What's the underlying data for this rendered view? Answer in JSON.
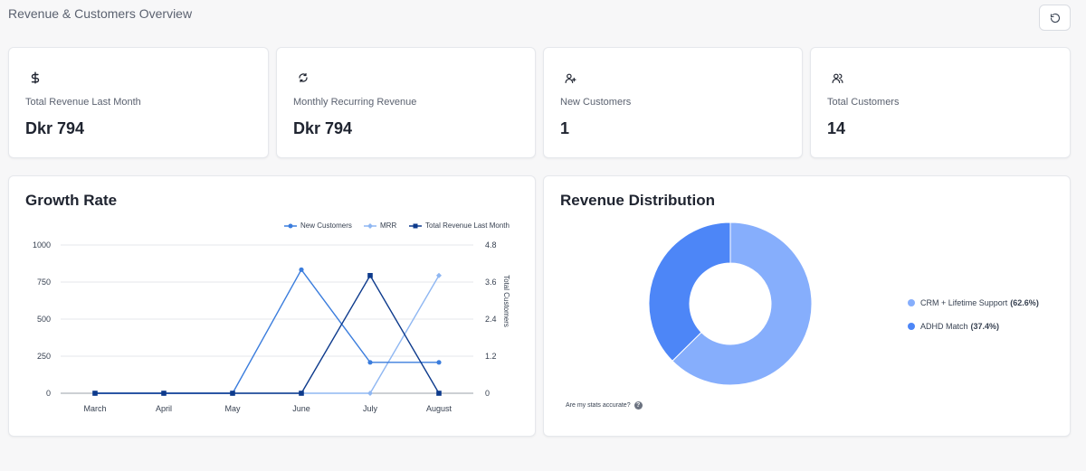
{
  "page": {
    "title": "Revenue & Customers Overview"
  },
  "stats": [
    {
      "icon": "dollar-icon",
      "label": "Total Revenue Last Month",
      "value": "Dkr 794"
    },
    {
      "icon": "recurring-icon",
      "label": "Monthly Recurring Revenue",
      "value": "Dkr 794"
    },
    {
      "icon": "user-plus-icon",
      "label": "New Customers",
      "value": "1"
    },
    {
      "icon": "users-icon",
      "label": "Total Customers",
      "value": "14"
    }
  ],
  "growth": {
    "title": "Growth Rate",
    "legend": [
      "New Customers",
      "MRR",
      "Total Revenue Last Month"
    ]
  },
  "distribution": {
    "title": "Revenue Distribution",
    "accuracy_text": "Are my stats accurate?",
    "items": [
      {
        "label": "CRM + Lifetime Support",
        "pct": "(62.6%)"
      },
      {
        "label": "ADHD Match",
        "pct": "(37.4%)"
      }
    ]
  },
  "colors": {
    "new_customers": "#3b7ddd",
    "mrr": "#8fb7f2",
    "total_revenue": "#0d3a8c",
    "donut_primary": "#86aefc",
    "donut_secondary": "#4d86f7"
  },
  "chart_data": [
    {
      "type": "line",
      "title": "Growth Rate",
      "categories": [
        "March",
        "April",
        "May",
        "June",
        "July",
        "August"
      ],
      "y_left": {
        "ticks": [
          0,
          250,
          500,
          750,
          1000
        ],
        "ylim": [
          0,
          1000
        ]
      },
      "y_right": {
        "label": "Total Customers",
        "ticks": [
          0,
          1.2,
          2.4,
          3.6,
          4.8
        ],
        "ylim": [
          0,
          4.8
        ]
      },
      "series": [
        {
          "name": "New Customers",
          "axis": "right",
          "values": [
            0,
            0,
            0,
            4,
            1,
            1
          ]
        },
        {
          "name": "MRR",
          "axis": "left",
          "values": [
            0,
            0,
            0,
            0,
            0,
            794
          ]
        },
        {
          "name": "Total Revenue Last Month",
          "axis": "left",
          "values": [
            0,
            0,
            0,
            0,
            794,
            0
          ]
        }
      ],
      "legend_position": "top-right",
      "grid": true
    },
    {
      "type": "pie",
      "title": "Revenue Distribution",
      "donut": true,
      "slices": [
        {
          "name": "CRM + Lifetime Support",
          "value": 62.6
        },
        {
          "name": "ADHD Match",
          "value": 37.4
        }
      ],
      "legend_position": "right"
    }
  ]
}
